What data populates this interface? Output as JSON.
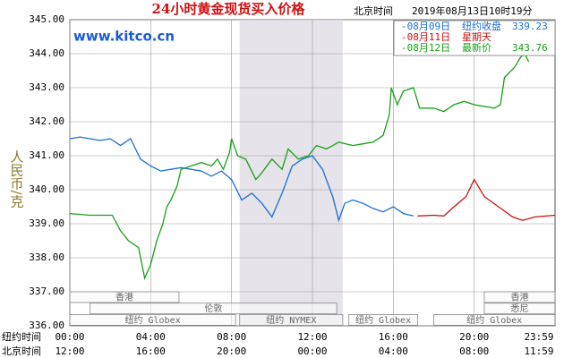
{
  "chart_data": {
    "type": "line",
    "title": "24小时黄金现货买入价格",
    "subtitle_label": "北京时间",
    "subtitle": "2019年08月13日10时19分",
    "watermark": "www.kitco.cn",
    "y_label": "人民币/克",
    "x_row_labels": [
      "纽约时间",
      "北京时间"
    ],
    "xlim": [
      0,
      24
    ],
    "xticks": [
      {
        "value": 0,
        "label": "00:00"
      },
      {
        "value": 4,
        "label": "04:00"
      },
      {
        "value": 8,
        "label": "08:00"
      },
      {
        "value": 12,
        "label": "12:00"
      },
      {
        "value": 16,
        "label": "16:00"
      },
      {
        "value": 20,
        "label": "20:00"
      },
      {
        "value": 23.98,
        "label": "23:59"
      }
    ],
    "x2ticks": [
      {
        "value": 0,
        "label": "12:00"
      },
      {
        "value": 4,
        "label": "16:00"
      },
      {
        "value": 8,
        "label": "20:00"
      },
      {
        "value": 12,
        "label": "00:00"
      },
      {
        "value": 16,
        "label": "04:00"
      },
      {
        "value": 20,
        "label": "08:00"
      },
      {
        "value": 23.98,
        "label": "11:59"
      }
    ],
    "ylim": [
      336,
      345
    ],
    "yticks": [
      {
        "value": 336,
        "label": "336.00"
      },
      {
        "value": 337,
        "label": "337.00"
      },
      {
        "value": 338,
        "label": "338.00"
      },
      {
        "value": 339,
        "label": "339.00"
      },
      {
        "value": 340,
        "label": "340.00"
      },
      {
        "value": 341,
        "label": "341.00"
      },
      {
        "value": 342,
        "label": "342.00"
      },
      {
        "value": 343,
        "label": "343.00"
      },
      {
        "value": 344,
        "label": "344.00"
      },
      {
        "value": 345,
        "label": "345.00"
      }
    ],
    "grid": true,
    "sessions": [
      {
        "name": "香港",
        "start": 0,
        "end": 5.4,
        "row": 0
      },
      {
        "name": "香港",
        "start": 20.5,
        "end": 24,
        "row": 0
      },
      {
        "name": "伦敦",
        "start": 1,
        "end": 13.2,
        "row": 1
      },
      {
        "name": "悉尼",
        "start": 20.5,
        "end": 24,
        "row": 1
      },
      {
        "name": "纽约 Globex",
        "start": 0,
        "end": 8.2,
        "row": 2
      },
      {
        "name": "纽约 NYMEX",
        "start": 8.4,
        "end": 13.5,
        "row": 2,
        "shaded": true
      },
      {
        "name": "纽约 Globex",
        "start": 13.8,
        "end": 17.2,
        "row": 2
      },
      {
        "name": "纽约 Globex",
        "start": 18,
        "end": 24,
        "row": 2
      }
    ],
    "series": [
      {
        "name": "-08月09日",
        "note": "纽约收盘",
        "last": 339.23,
        "color": "#1a6fd6",
        "x": [
          0,
          0.5,
          1,
          1.5,
          2,
          2.5,
          3,
          3.5,
          4,
          4.5,
          5,
          5.5,
          6,
          6.5,
          7,
          7.5,
          8,
          8.5,
          9,
          9.5,
          10,
          10.5,
          11,
          11.5,
          12,
          12.5,
          13,
          13.3,
          13.6,
          14,
          14.5,
          15,
          15.5,
          16,
          16.5,
          17
        ],
        "values": [
          341.5,
          341.55,
          341.5,
          341.45,
          341.5,
          341.3,
          341.5,
          340.9,
          340.7,
          340.55,
          340.6,
          340.65,
          340.6,
          340.55,
          340.4,
          340.55,
          340.3,
          339.7,
          339.9,
          339.6,
          339.2,
          339.9,
          340.7,
          340.9,
          341.0,
          340.6,
          339.8,
          339.1,
          339.6,
          339.7,
          339.6,
          339.45,
          339.35,
          339.5,
          339.3,
          339.23
        ]
      },
      {
        "name": "-08月11日",
        "note": "星期天",
        "color": "#cc1010",
        "x": [
          17.2,
          18,
          18.5,
          19,
          19.6,
          20,
          20.5,
          21.2,
          21.9,
          22.4,
          23,
          24
        ],
        "values": [
          339.23,
          339.25,
          339.23,
          339.5,
          339.8,
          340.3,
          339.8,
          339.5,
          339.2,
          339.1,
          339.2,
          339.25
        ]
      },
      {
        "name": "-08月12日",
        "note": "最新价",
        "last": 343.76,
        "color": "#18a018",
        "x": [
          0,
          1,
          2.1,
          2.5,
          2.9,
          3.4,
          3.7,
          4,
          4.3,
          4.6,
          4.8,
          5,
          5.3,
          5.5,
          6,
          6.5,
          7,
          7.3,
          7.6,
          7.9,
          8,
          8.3,
          8.7,
          9.2,
          9.5,
          10,
          10.5,
          10.8,
          11.3,
          11.8,
          12.2,
          12.7,
          13.3,
          14,
          14.5,
          15,
          15.5,
          15.8,
          15.9,
          16.2,
          16.5,
          17,
          17.3,
          18,
          18.5,
          19,
          19.5,
          20,
          21,
          21.3,
          21.5,
          22,
          22.3,
          22.5,
          22.7
        ],
        "values": [
          339.3,
          339.25,
          339.25,
          338.8,
          338.5,
          338.3,
          337.4,
          337.8,
          338.5,
          339,
          339.5,
          339.7,
          340.1,
          340.6,
          340.7,
          340.8,
          340.7,
          340.9,
          340.6,
          341.1,
          341.5,
          341,
          340.9,
          340.3,
          340.5,
          340.9,
          340.6,
          341.2,
          340.9,
          341,
          341.3,
          341.2,
          341.4,
          341.3,
          341.35,
          341.4,
          341.6,
          342.2,
          343,
          342.5,
          342.9,
          343,
          342.4,
          342.4,
          342.3,
          342.5,
          342.6,
          342.5,
          342.4,
          342.5,
          343.3,
          343.6,
          343.9,
          344,
          343.76
        ]
      }
    ]
  }
}
